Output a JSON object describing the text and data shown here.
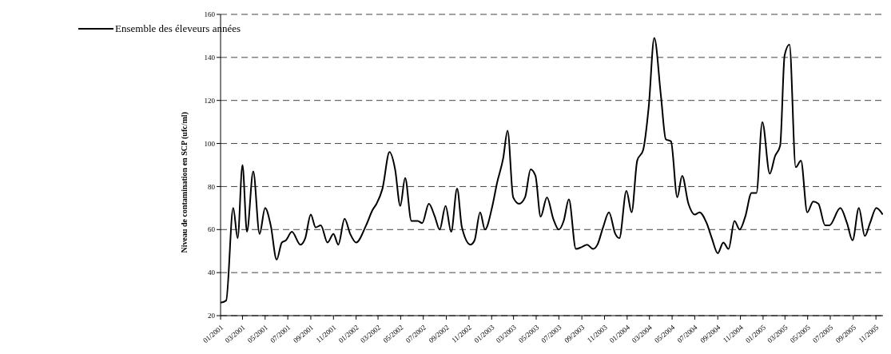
{
  "chart_data": {
    "type": "line",
    "ylabel": "Niveau de contamination en SCP (ufc/ml)",
    "x": [
      "2001-01-01",
      "2001-01-16",
      "2001-02-04",
      "2001-02-16",
      "2001-03-01",
      "2001-03-13",
      "2001-03-30",
      "2001-04-16",
      "2001-05-01",
      "2001-05-16",
      "2001-06-01",
      "2001-06-15",
      "2001-06-26",
      "2001-07-12",
      "2001-08-04",
      "2001-08-17",
      "2001-09-01",
      "2001-09-14",
      "2001-09-28",
      "2001-10-16",
      "2001-11-01",
      "2001-11-14",
      "2001-12-01",
      "2001-12-16",
      "2002-01-01",
      "2002-01-28",
      "2002-02-14",
      "2002-02-25",
      "2002-03-13",
      "2002-04-01",
      "2002-04-16",
      "2002-04-30",
      "2002-05-13",
      "2002-05-30",
      "2002-06-16",
      "2002-06-28",
      "2002-07-16",
      "2002-08-01",
      "2002-08-14",
      "2002-08-30",
      "2002-09-14",
      "2002-09-30",
      "2002-10-13",
      "2002-11-05",
      "2002-11-16",
      "2002-12-01",
      "2002-12-14",
      "2003-01-03",
      "2003-01-16",
      "2003-02-01",
      "2003-02-13",
      "2003-02-28",
      "2003-03-16",
      "2003-04-01",
      "2003-04-16",
      "2003-04-29",
      "2003-05-13",
      "2003-05-30",
      "2003-06-16",
      "2003-07-01",
      "2003-07-14",
      "2003-07-28",
      "2003-08-16",
      "2003-09-02",
      "2003-09-15",
      "2003-10-01",
      "2003-10-13",
      "2003-10-28",
      "2003-11-13",
      "2003-11-30",
      "2003-12-11",
      "2003-12-30",
      "2004-01-13",
      "2004-01-28",
      "2004-02-13",
      "2004-02-28",
      "2004-03-14",
      "2004-04-01",
      "2004-04-14",
      "2004-04-28",
      "2004-05-15",
      "2004-05-28",
      "2004-06-14",
      "2004-07-01",
      "2004-07-14",
      "2004-08-02",
      "2004-08-16",
      "2004-09-01",
      "2004-09-16",
      "2004-09-30",
      "2004-10-16",
      "2004-10-30",
      "2004-11-14",
      "2004-12-01",
      "2004-12-14",
      "2004-12-30",
      "2005-01-19",
      "2005-02-02",
      "2005-02-16",
      "2005-02-28",
      "2005-03-13",
      "2005-03-30",
      "2005-04-13",
      "2005-04-30",
      "2005-05-16",
      "2005-05-30",
      "2005-06-17",
      "2005-06-29",
      "2005-07-28",
      "2005-08-15",
      "2005-08-30",
      "2005-09-16",
      "2005-10-02",
      "2005-10-16",
      "2005-11-02",
      "2005-11-19"
    ],
    "series": [
      {
        "name": "Ensemble des éleveurs années",
        "color": "#000000",
        "values": [
          26,
          27,
          70,
          56,
          90,
          59,
          87,
          58,
          70,
          62,
          46,
          54,
          55,
          59,
          53,
          56,
          67,
          61,
          62,
          54,
          58,
          53,
          65,
          58,
          54,
          62,
          69,
          72,
          79,
          96,
          88,
          71,
          84,
          64,
          64,
          63,
          72,
          66,
          60,
          71,
          59,
          79,
          61,
          53,
          55,
          68,
          60,
          71,
          82,
          93,
          106,
          75,
          72,
          75,
          88,
          85,
          66,
          75,
          65,
          60,
          64,
          74,
          51,
          52,
          53,
          51,
          53,
          61,
          68,
          58,
          56,
          78,
          68,
          92,
          97,
          117,
          149,
          122,
          102,
          101,
          75,
          85,
          72,
          67,
          68,
          63,
          56,
          49,
          54,
          51,
          64,
          60,
          66,
          77,
          77,
          110,
          86,
          94,
          99,
          141,
          146,
          89,
          92,
          68,
          73,
          72,
          62,
          62,
          70,
          63,
          55,
          70,
          57,
          63,
          70,
          67
        ]
      }
    ],
    "xlim": [
      "2001-01-01",
      "2005-11-20"
    ],
    "xticks": [
      {
        "value": "2001-01",
        "label": "01/2001"
      },
      {
        "value": "2001-03",
        "label": "03/2001"
      },
      {
        "value": "2001-05",
        "label": "05/2001"
      },
      {
        "value": "2001-07",
        "label": "07/2001"
      },
      {
        "value": "2001-09",
        "label": "09/2001"
      },
      {
        "value": "2001-11",
        "label": "11/2001"
      },
      {
        "value": "2002-01",
        "label": "01/2002"
      },
      {
        "value": "2002-03",
        "label": "03/2002"
      },
      {
        "value": "2002-05",
        "label": "05/2002"
      },
      {
        "value": "2002-07",
        "label": "07/2002"
      },
      {
        "value": "2002-09",
        "label": "09/2002"
      },
      {
        "value": "2002-11",
        "label": "11/2002"
      },
      {
        "value": "2003-01",
        "label": "01/2003"
      },
      {
        "value": "2003-03",
        "label": "03/2003"
      },
      {
        "value": "2003-05",
        "label": "05/2003"
      },
      {
        "value": "2003-07",
        "label": "07/2003"
      },
      {
        "value": "2003-09",
        "label": "09/2003"
      },
      {
        "value": "2003-11",
        "label": "11/2003"
      },
      {
        "value": "2004-01",
        "label": "01/2004"
      },
      {
        "value": "2004-03",
        "label": "03/2004"
      },
      {
        "value": "2004-05",
        "label": "05/2004"
      },
      {
        "value": "2004-07",
        "label": "07/2004"
      },
      {
        "value": "2004-09",
        "label": "09/2004"
      },
      {
        "value": "2004-11",
        "label": "11/2004"
      },
      {
        "value": "2005-01",
        "label": "01/2005"
      },
      {
        "value": "2005-03",
        "label": "03/2005"
      },
      {
        "value": "2005-05",
        "label": "05/2005"
      },
      {
        "value": "2005-07",
        "label": "07/2005"
      },
      {
        "value": "2005-09",
        "label": "09/2005"
      },
      {
        "value": "2005-11",
        "label": "11/2005"
      }
    ],
    "ylim": [
      20,
      160
    ],
    "yticks": [
      20,
      40,
      60,
      80,
      100,
      120,
      140,
      160
    ],
    "grid": "y",
    "legend": "top left",
    "marker": "none",
    "line_style": "solid"
  }
}
